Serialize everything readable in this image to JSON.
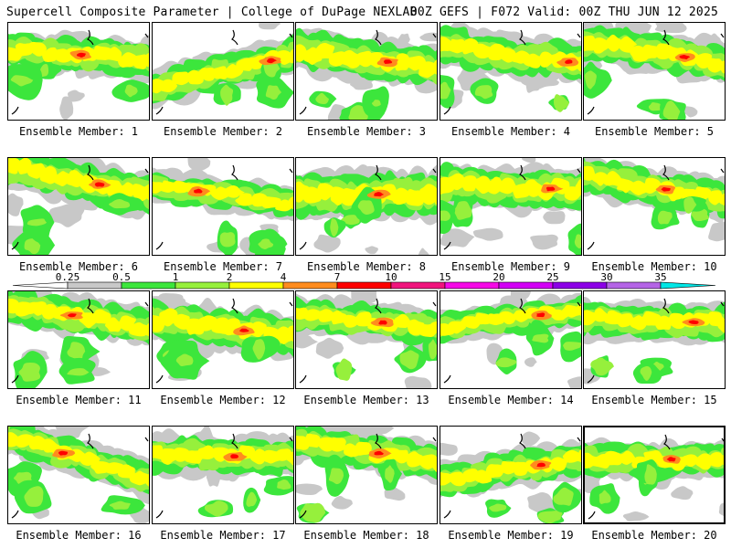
{
  "header": {
    "title": "Supercell Composite Parameter | College of DuPage NEXLAB",
    "run_info": "00Z GEFS | F072 Valid: 00Z THU JUN 12 2025"
  },
  "caption_prefix": "Ensemble Member:",
  "members": [
    {
      "label": "Ensemble Member: 1"
    },
    {
      "label": "Ensemble Member: 2"
    },
    {
      "label": "Ensemble Member: 3"
    },
    {
      "label": "Ensemble Member: 4"
    },
    {
      "label": "Ensemble Member: 5"
    },
    {
      "label": "Ensemble Member: 6"
    },
    {
      "label": "Ensemble Member: 7"
    },
    {
      "label": "Ensemble Member: 8"
    },
    {
      "label": "Ensemble Member: 9"
    },
    {
      "label": "Ensemble Member: 10"
    },
    {
      "label": "Ensemble Member: 11"
    },
    {
      "label": "Ensemble Member: 12"
    },
    {
      "label": "Ensemble Member: 13"
    },
    {
      "label": "Ensemble Member: 14"
    },
    {
      "label": "Ensemble Member: 15"
    },
    {
      "label": "Ensemble Member: 16"
    },
    {
      "label": "Ensemble Member: 17"
    },
    {
      "label": "Ensemble Member: 18"
    },
    {
      "label": "Ensemble Member: 19"
    },
    {
      "label": "Ensemble Member: 20"
    }
  ],
  "selected_member": 20,
  "colorbar": {
    "ticks": [
      "0.25",
      "0.5",
      "1",
      "2",
      "4",
      "7",
      "10",
      "15",
      "20",
      "25",
      "30",
      "35"
    ],
    "colors": [
      "#c8c8c8",
      "#3ce63c",
      "#96f03c",
      "#ffff00",
      "#ff8c1e",
      "#ff0000",
      "#f0147d",
      "#f50ae6",
      "#d200f5",
      "#8c00e6",
      "#b464e6",
      "#00e6e6"
    ]
  }
}
